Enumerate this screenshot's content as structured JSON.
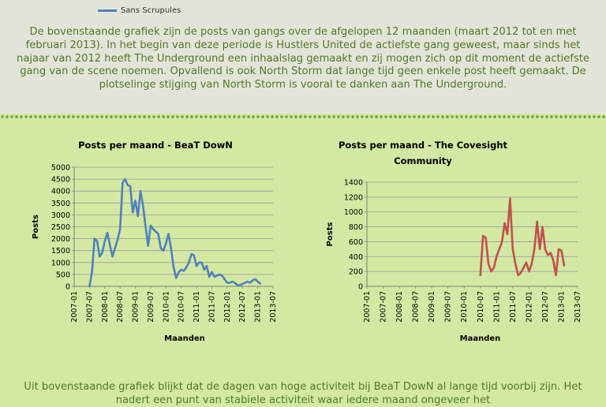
{
  "legend": {
    "series_name": "Sans Scrupules",
    "color": "#4f81bd"
  },
  "intro_text": "De bovenstaande grafiek zijn de posts van gangs over de afgelopen 12 maanden (maart 2012 tot en met februari 2013). In het begin van deze periode is Hustlers United de actiefste gang geweest, maar sinds het najaar van 2012 heeft The Underground een inhaalslag gemaakt en zij mogen zich op dit moment de actiefste gang van de scene noemen. Opvallend is ook North Storm dat lange tijd geen enkele post heeft gemaakt. De plotselinge stijging van North Storm is vooral te danken aan The Underground.",
  "bottom_text": "Uit bovenstaande grafiek blijkt dat de dagen van hoge activiteit bij BeaT DowN al lange tijd voorbij zijn. Het nadert een punt van stabiele activiteit waar iedere maand ongeveer het",
  "colors": {
    "background": "#d3e8a3",
    "top_panel": "#e3e4d9",
    "text_green": "#4f7a26",
    "dot_border": "#6e9f3d"
  },
  "chart_data": [
    {
      "type": "line",
      "title": "Posts per maand - BeaT DowN",
      "xlabel": "Maanden",
      "ylabel": "Posts",
      "ylim": [
        0,
        5000
      ],
      "yticks": [
        0,
        500,
        1000,
        1500,
        2000,
        2500,
        3000,
        3500,
        4000,
        4500,
        5000
      ],
      "xticks": [
        "2007-01",
        "2007-07",
        "2008-01",
        "2008-07",
        "2009-01",
        "2009-07",
        "2010-01",
        "2010-07",
        "2011-01",
        "2011-07",
        "2012-01",
        "2012-07",
        "2013-01",
        "2013-07"
      ],
      "grid": true,
      "color": "#4f81bd",
      "series": [
        {
          "x": [
            "2007-07",
            "2007-08",
            "2007-09",
            "2007-10",
            "2007-11",
            "2007-12",
            "2008-01",
            "2008-02",
            "2008-03",
            "2008-04",
            "2008-05",
            "2008-06",
            "2008-07",
            "2008-08",
            "2008-09",
            "2008-10",
            "2008-11",
            "2008-12",
            "2009-01",
            "2009-02",
            "2009-03",
            "2009-04",
            "2009-05",
            "2009-06",
            "2009-07",
            "2009-08",
            "2009-09",
            "2009-10",
            "2009-11",
            "2009-12",
            "2010-01",
            "2010-02",
            "2010-03",
            "2010-04",
            "2010-05",
            "2010-06",
            "2010-07",
            "2010-08",
            "2010-09",
            "2010-10",
            "2010-11",
            "2010-12",
            "2011-01",
            "2011-02",
            "2011-03",
            "2011-04",
            "2011-05",
            "2011-06",
            "2011-07",
            "2011-08",
            "2011-09",
            "2011-10",
            "2011-11",
            "2011-12",
            "2012-01",
            "2012-02",
            "2012-03",
            "2012-04",
            "2012-05",
            "2012-06",
            "2012-07",
            "2012-08",
            "2012-09",
            "2012-10",
            "2012-11",
            "2012-12",
            "2013-01",
            "2013-02"
          ],
          "values": [
            0,
            600,
            2000,
            1900,
            1250,
            1400,
            1900,
            2250,
            1750,
            1250,
            1600,
            1950,
            2400,
            4350,
            4500,
            4250,
            4200,
            3100,
            3600,
            2950,
            4000,
            3400,
            2500,
            1700,
            2550,
            2400,
            2300,
            2200,
            1600,
            1500,
            1800,
            2200,
            1600,
            800,
            350,
            600,
            700,
            650,
            800,
            1000,
            1350,
            1300,
            850,
            1000,
            1000,
            700,
            850,
            400,
            600,
            400,
            450,
            500,
            450,
            300,
            150,
            150,
            200,
            150,
            50,
            50,
            100,
            150,
            200,
            150,
            250,
            300,
            200,
            120
          ]
        }
      ]
    },
    {
      "type": "line",
      "title": "Posts per maand - The Covesight Community",
      "xlabel": "Maanden",
      "ylabel": "Posts",
      "ylim": [
        0,
        1400
      ],
      "yticks": [
        0,
        200,
        400,
        600,
        800,
        1000,
        1200,
        1400
      ],
      "xticks": [
        "2007-01",
        "2007-07",
        "2008-01",
        "2008-07",
        "2009-01",
        "2009-07",
        "2010-01",
        "2010-07",
        "2011-01",
        "2011-07",
        "2012-01",
        "2012-07",
        "2013-01",
        "2013-07"
      ],
      "grid": true,
      "color": "#c0504d",
      "series": [
        {
          "x": [
            "2010-07",
            "2010-08",
            "2010-09",
            "2010-10",
            "2010-11",
            "2010-12",
            "2011-01",
            "2011-02",
            "2011-03",
            "2011-04",
            "2011-05",
            "2011-06",
            "2011-07",
            "2011-08",
            "2011-09",
            "2011-10",
            "2011-11",
            "2011-12",
            "2012-01",
            "2012-02",
            "2012-03",
            "2012-04",
            "2012-05",
            "2012-06",
            "2012-07",
            "2012-08",
            "2012-09",
            "2012-10",
            "2012-11",
            "2012-12",
            "2013-01",
            "2013-02"
          ],
          "values": [
            150,
            680,
            650,
            300,
            200,
            250,
            400,
            500,
            600,
            850,
            700,
            1180,
            500,
            300,
            150,
            180,
            250,
            320,
            200,
            300,
            500,
            870,
            500,
            800,
            500,
            420,
            450,
            350,
            150,
            500,
            480,
            280
          ]
        }
      ]
    }
  ]
}
